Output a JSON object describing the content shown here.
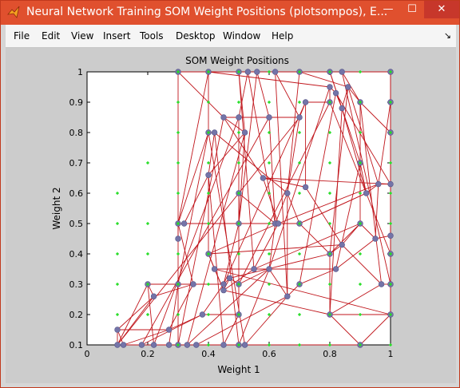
{
  "window": {
    "title": "Neural Network Training SOM Weight Positions (plotsompos), E...",
    "minimize_label": "—",
    "maximize_label": "☐",
    "close_label": "✕",
    "app_icon": "matlab-icon"
  },
  "menu": {
    "items": [
      "File",
      "Edit",
      "View",
      "Insert",
      "Tools",
      "Desktop",
      "Window",
      "Help"
    ],
    "dock_icon": "↘"
  },
  "colors": {
    "titlebar": "#e0502e",
    "line": "#c0151b",
    "node": "#7474a8",
    "input": "#22dd22"
  },
  "chart_data": {
    "type": "scatter",
    "title": "SOM Weight Positions",
    "xlabel": "Weight 1",
    "ylabel": "Weight 2",
    "xlim": [
      0,
      1
    ],
    "ylim": [
      0.1,
      1
    ],
    "xticks": [
      "0",
      "0.2",
      "0.4",
      "0.6",
      "0.8",
      "1"
    ],
    "yticks": [
      "0.1",
      "0.2",
      "0.3",
      "0.4",
      "0.5",
      "0.6",
      "0.7",
      "0.8",
      "0.9",
      "1"
    ],
    "grid": false,
    "inputs": [
      [
        0.1,
        0.6
      ],
      [
        0.2,
        0.7
      ],
      [
        0.1,
        0.5
      ],
      [
        0.2,
        0.5
      ],
      [
        0.1,
        0.4
      ],
      [
        0.2,
        0.4
      ],
      [
        0.1,
        0.3
      ],
      [
        0.2,
        0.3
      ],
      [
        0.1,
        0.2
      ],
      [
        0.2,
        0.2
      ],
      [
        0.3,
        0.1
      ],
      [
        0.4,
        0.1
      ],
      [
        0.5,
        0.1
      ],
      [
        0.6,
        0.1
      ],
      [
        0.7,
        0.1
      ],
      [
        0.8,
        0.1
      ],
      [
        0.9,
        0.1
      ],
      [
        1.0,
        0.1
      ],
      [
        0.3,
        0.2
      ],
      [
        0.4,
        0.2
      ],
      [
        0.5,
        0.2
      ],
      [
        0.6,
        0.2
      ],
      [
        0.7,
        0.2
      ],
      [
        0.8,
        0.2
      ],
      [
        0.9,
        0.2
      ],
      [
        1.0,
        0.2
      ],
      [
        0.3,
        0.3
      ],
      [
        0.4,
        0.3
      ],
      [
        0.5,
        0.3
      ],
      [
        0.6,
        0.3
      ],
      [
        0.7,
        0.3
      ],
      [
        0.8,
        0.3
      ],
      [
        0.9,
        0.3
      ],
      [
        1.0,
        0.3
      ],
      [
        0.3,
        0.4
      ],
      [
        0.4,
        0.4
      ],
      [
        0.5,
        0.4
      ],
      [
        0.6,
        0.4
      ],
      [
        0.7,
        0.4
      ],
      [
        0.8,
        0.4
      ],
      [
        0.9,
        0.4
      ],
      [
        1.0,
        0.4
      ],
      [
        0.3,
        0.5
      ],
      [
        0.4,
        0.5
      ],
      [
        0.5,
        0.5
      ],
      [
        0.6,
        0.5
      ],
      [
        0.7,
        0.5
      ],
      [
        0.8,
        0.5
      ],
      [
        0.9,
        0.5
      ],
      [
        1.0,
        0.5
      ],
      [
        0.3,
        0.6
      ],
      [
        0.4,
        0.6
      ],
      [
        0.5,
        0.6
      ],
      [
        0.6,
        0.6
      ],
      [
        0.7,
        0.6
      ],
      [
        0.8,
        0.6
      ],
      [
        0.9,
        0.6
      ],
      [
        1.0,
        0.6
      ],
      [
        0.3,
        0.7
      ],
      [
        0.4,
        0.7
      ],
      [
        0.5,
        0.7
      ],
      [
        0.6,
        0.7
      ],
      [
        0.7,
        0.7
      ],
      [
        0.8,
        0.7
      ],
      [
        0.9,
        0.7
      ],
      [
        1.0,
        0.7
      ],
      [
        0.3,
        0.8
      ],
      [
        0.4,
        0.8
      ],
      [
        0.5,
        0.8
      ],
      [
        0.6,
        0.8
      ],
      [
        0.7,
        0.8
      ],
      [
        0.8,
        0.8
      ],
      [
        0.9,
        0.8
      ],
      [
        1.0,
        0.8
      ],
      [
        0.3,
        0.9
      ],
      [
        0.4,
        0.9
      ],
      [
        0.5,
        0.9
      ],
      [
        0.6,
        0.9
      ],
      [
        0.7,
        0.9
      ],
      [
        0.8,
        0.9
      ],
      [
        0.9,
        0.9
      ],
      [
        1.0,
        0.9
      ],
      [
        0.3,
        1.0
      ],
      [
        0.4,
        1.0
      ],
      [
        0.5,
        1.0
      ],
      [
        0.6,
        1.0
      ],
      [
        0.7,
        1.0
      ],
      [
        0.8,
        1.0
      ],
      [
        0.9,
        1.0
      ],
      [
        1.0,
        1.0
      ]
    ],
    "neurons": [
      [
        0.1,
        0.1
      ],
      [
        0.1,
        0.15
      ],
      [
        0.12,
        0.1
      ],
      [
        0.18,
        0.1
      ],
      [
        0.22,
        0.1
      ],
      [
        0.27,
        0.1
      ],
      [
        0.3,
        0.1
      ],
      [
        0.33,
        0.1
      ],
      [
        0.36,
        0.1
      ],
      [
        0.45,
        0.1
      ],
      [
        0.5,
        0.1
      ],
      [
        0.52,
        0.1
      ],
      [
        0.9,
        0.1
      ],
      [
        0.2,
        0.3
      ],
      [
        0.22,
        0.26
      ],
      [
        0.3,
        0.3
      ],
      [
        0.35,
        0.3
      ],
      [
        0.45,
        0.3
      ],
      [
        0.47,
        0.32
      ],
      [
        0.5,
        0.3
      ],
      [
        0.6,
        0.35
      ],
      [
        0.66,
        0.26
      ],
      [
        0.7,
        0.3
      ],
      [
        0.3,
        0.45
      ],
      [
        0.3,
        0.5
      ],
      [
        0.32,
        0.5
      ],
      [
        0.5,
        0.5
      ],
      [
        0.5,
        0.6
      ],
      [
        0.62,
        0.5
      ],
      [
        0.66,
        0.6
      ],
      [
        0.7,
        0.5
      ],
      [
        0.8,
        0.4
      ],
      [
        0.84,
        0.43
      ],
      [
        0.9,
        0.5
      ],
      [
        0.95,
        0.45
      ],
      [
        1.0,
        0.46
      ],
      [
        1.0,
        0.4
      ],
      [
        1.0,
        0.3
      ],
      [
        0.97,
        0.3
      ],
      [
        0.8,
        0.2
      ],
      [
        1.0,
        0.2
      ],
      [
        1.0,
        0.63
      ],
      [
        0.96,
        0.63
      ],
      [
        0.92,
        0.6
      ],
      [
        0.9,
        0.7
      ],
      [
        0.4,
        0.8
      ],
      [
        0.42,
        0.8
      ],
      [
        0.4,
        0.66
      ],
      [
        0.52,
        0.8
      ],
      [
        0.45,
        0.85
      ],
      [
        0.5,
        0.85
      ],
      [
        0.6,
        0.85
      ],
      [
        0.7,
        0.85
      ],
      [
        0.72,
        0.9
      ],
      [
        0.8,
        0.9
      ],
      [
        0.8,
        0.95
      ],
      [
        0.82,
        0.93
      ],
      [
        0.84,
        0.88
      ],
      [
        0.86,
        0.95
      ],
      [
        0.9,
        0.9
      ],
      [
        1.0,
        0.8
      ],
      [
        1.0,
        0.9
      ],
      [
        0.58,
        0.65
      ],
      [
        0.63,
        0.5
      ],
      [
        0.4,
        0.4
      ],
      [
        0.45,
        0.28
      ],
      [
        0.55,
        0.35
      ],
      [
        0.3,
        1.0
      ],
      [
        0.4,
        1.0
      ],
      [
        0.5,
        1.0
      ],
      [
        0.53,
        1.0
      ],
      [
        0.56,
        1.0
      ],
      [
        0.62,
        1.0
      ],
      [
        0.7,
        1.0
      ],
      [
        0.8,
        1.0
      ],
      [
        0.84,
        1.0
      ],
      [
        1.0,
        1.0
      ],
      [
        0.72,
        0.62
      ],
      [
        0.5,
        0.2
      ],
      [
        0.38,
        0.2
      ],
      [
        0.27,
        0.15
      ],
      [
        0.82,
        0.35
      ],
      [
        0.42,
        0.35
      ]
    ],
    "links": [
      [
        0,
        1
      ],
      [
        1,
        2
      ],
      [
        2,
        3
      ],
      [
        3,
        4
      ],
      [
        4,
        5
      ],
      [
        5,
        6
      ],
      [
        6,
        7
      ],
      [
        7,
        8
      ],
      [
        8,
        9
      ],
      [
        9,
        10
      ],
      [
        10,
        11
      ],
      [
        11,
        12
      ],
      [
        13,
        14
      ],
      [
        14,
        0
      ],
      [
        15,
        16
      ],
      [
        16,
        17
      ],
      [
        17,
        18
      ],
      [
        18,
        19
      ],
      [
        19,
        20
      ],
      [
        20,
        21
      ],
      [
        21,
        22
      ],
      [
        23,
        24
      ],
      [
        24,
        25
      ],
      [
        25,
        26
      ],
      [
        26,
        27
      ],
      [
        27,
        28
      ],
      [
        28,
        29
      ],
      [
        29,
        30
      ],
      [
        30,
        31
      ],
      [
        31,
        32
      ],
      [
        32,
        33
      ],
      [
        33,
        34
      ],
      [
        34,
        35
      ],
      [
        35,
        36
      ],
      [
        36,
        37
      ],
      [
        37,
        38
      ],
      [
        38,
        39
      ],
      [
        39,
        40
      ],
      [
        41,
        42
      ],
      [
        42,
        43
      ],
      [
        43,
        44
      ],
      [
        45,
        46
      ],
      [
        46,
        47
      ],
      [
        47,
        48
      ],
      [
        48,
        49
      ],
      [
        49,
        50
      ],
      [
        50,
        51
      ],
      [
        51,
        52
      ],
      [
        52,
        53
      ],
      [
        53,
        54
      ],
      [
        54,
        55
      ],
      [
        55,
        56
      ],
      [
        56,
        57
      ],
      [
        57,
        58
      ],
      [
        58,
        59
      ],
      [
        59,
        60
      ],
      [
        60,
        61
      ],
      [
        62,
        63
      ],
      [
        63,
        64
      ],
      [
        64,
        65
      ],
      [
        65,
        66
      ],
      [
        67,
        68
      ],
      [
        68,
        69
      ],
      [
        69,
        70
      ],
      [
        70,
        71
      ],
      [
        71,
        72
      ],
      [
        72,
        73
      ],
      [
        73,
        74
      ],
      [
        74,
        75
      ],
      [
        75,
        76
      ],
      [
        77,
        62
      ],
      [
        78,
        79
      ],
      [
        79,
        80
      ],
      [
        80,
        1
      ],
      [
        81,
        82
      ],
      [
        0,
        13
      ],
      [
        13,
        15
      ],
      [
        15,
        23
      ],
      [
        23,
        67
      ],
      [
        1,
        14
      ],
      [
        14,
        16
      ],
      [
        16,
        24
      ],
      [
        24,
        45
      ],
      [
        45,
        68
      ],
      [
        6,
        15
      ],
      [
        15,
        45
      ],
      [
        3,
        79
      ],
      [
        79,
        17
      ],
      [
        17,
        26
      ],
      [
        26,
        48
      ],
      [
        48,
        69
      ],
      [
        9,
        78
      ],
      [
        78,
        19
      ],
      [
        19,
        27
      ],
      [
        27,
        50
      ],
      [
        50,
        70
      ],
      [
        10,
        20
      ],
      [
        20,
        28
      ],
      [
        28,
        51
      ],
      [
        51,
        71
      ],
      [
        11,
        21
      ],
      [
        21,
        29
      ],
      [
        29,
        52
      ],
      [
        52,
        72
      ],
      [
        12,
        39
      ],
      [
        39,
        31
      ],
      [
        31,
        33
      ],
      [
        33,
        44
      ],
      [
        44,
        59
      ],
      [
        59,
        75
      ],
      [
        12,
        40
      ],
      [
        40,
        37
      ],
      [
        37,
        36
      ],
      [
        36,
        35
      ],
      [
        35,
        41
      ],
      [
        41,
        60
      ],
      [
        60,
        61
      ],
      [
        61,
        76
      ],
      [
        2,
        80
      ],
      [
        80,
        16
      ],
      [
        18,
        65
      ],
      [
        65,
        82
      ],
      [
        82,
        64
      ],
      [
        64,
        47
      ],
      [
        47,
        25
      ],
      [
        66,
        63
      ],
      [
        63,
        30
      ],
      [
        30,
        43
      ],
      [
        43,
        57
      ],
      [
        57,
        74
      ],
      [
        22,
        81
      ],
      [
        81,
        34
      ],
      [
        34,
        42
      ],
      [
        42,
        58
      ],
      [
        58,
        73
      ],
      [
        8,
        21
      ],
      [
        7,
        20
      ],
      [
        4,
        13
      ],
      [
        5,
        15
      ],
      [
        53,
        77
      ],
      [
        77,
        32
      ],
      [
        32,
        38
      ],
      [
        62,
        49
      ],
      [
        49,
        67
      ],
      [
        54,
        36
      ],
      [
        56,
        41
      ],
      [
        55,
        68
      ],
      [
        69,
        66
      ],
      [
        70,
        28
      ],
      [
        73,
        29
      ],
      [
        74,
        44
      ],
      [
        76,
        35
      ],
      [
        72,
        21
      ],
      [
        71,
        26
      ],
      [
        68,
        24
      ],
      [
        61,
        42
      ],
      [
        60,
        40
      ],
      [
        58,
        31
      ],
      [
        57,
        39
      ],
      [
        56,
        22
      ],
      [
        55,
        20
      ],
      [
        54,
        19
      ],
      [
        53,
        17
      ],
      [
        52,
        0
      ],
      [
        51,
        3
      ],
      [
        50,
        4
      ],
      [
        49,
        6
      ],
      [
        48,
        7
      ],
      [
        47,
        9
      ],
      [
        46,
        10
      ],
      [
        45,
        11
      ],
      [
        75,
        37
      ],
      [
        59,
        38
      ],
      [
        44,
        81
      ],
      [
        43,
        30
      ],
      [
        42,
        63
      ],
      [
        41,
        62
      ],
      [
        40,
        82
      ],
      [
        39,
        65
      ],
      [
        33,
        66
      ],
      [
        32,
        64
      ],
      [
        31,
        18
      ],
      [
        30,
        25
      ],
      [
        29,
        46
      ]
    ]
  }
}
